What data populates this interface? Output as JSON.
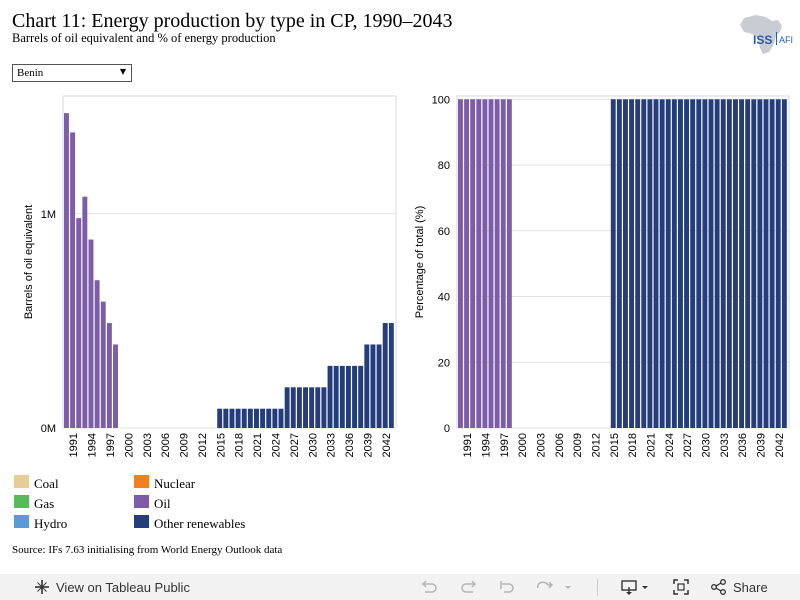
{
  "header": {
    "title": "Chart 11: Energy production by type in CP, 1990–2043",
    "subtitle": "Barrels of oil equivalent and % of energy production",
    "logo_text_left": "ISS",
    "logo_text_right": "AFI"
  },
  "filter": {
    "selected": "Benin"
  },
  "chart_data": [
    {
      "type": "bar",
      "ylabel": "Barrels of oil equivalent",
      "y_ticks": [
        "0M",
        "1M"
      ],
      "y_tick_values": [
        0,
        1000000
      ],
      "ylim": [
        0,
        1550000
      ],
      "x_tick_labels": [
        "1991",
        "1994",
        "1997",
        "2000",
        "2003",
        "2006",
        "2009",
        "2012",
        "2015",
        "2018",
        "2021",
        "2024",
        "2027",
        "2030",
        "2033",
        "2036",
        "2039",
        "2042"
      ],
      "years": [
        1990,
        1991,
        1992,
        1993,
        1994,
        1995,
        1996,
        1997,
        1998,
        1999,
        2000,
        2001,
        2002,
        2003,
        2004,
        2005,
        2006,
        2007,
        2008,
        2009,
        2010,
        2011,
        2012,
        2013,
        2014,
        2015,
        2016,
        2017,
        2018,
        2019,
        2020,
        2021,
        2022,
        2023,
        2024,
        2025,
        2026,
        2027,
        2028,
        2029,
        2030,
        2031,
        2032,
        2033,
        2034,
        2035,
        2036,
        2037,
        2038,
        2039,
        2040,
        2041,
        2042,
        2043
      ],
      "series": [
        {
          "name": "Oil",
          "color": "#7b5ea7",
          "values": [
            1470000,
            1380000,
            980000,
            1080000,
            880000,
            690000,
            590000,
            490000,
            390000,
            0,
            0,
            0,
            0,
            0,
            0,
            0,
            0,
            0,
            0,
            0,
            0,
            0,
            0,
            0,
            0,
            0,
            0,
            0,
            0,
            0,
            0,
            0,
            0,
            0,
            0,
            0,
            0,
            0,
            0,
            0,
            0,
            0,
            0,
            0,
            0,
            0,
            0,
            0,
            0,
            0,
            0,
            0,
            0,
            0
          ]
        },
        {
          "name": "Other renewables",
          "color": "#253d7a",
          "values": [
            0,
            0,
            0,
            0,
            0,
            0,
            0,
            0,
            0,
            0,
            0,
            0,
            0,
            0,
            0,
            0,
            0,
            0,
            0,
            0,
            0,
            0,
            0,
            0,
            0,
            90000,
            90000,
            90000,
            90000,
            90000,
            90000,
            90000,
            90000,
            90000,
            90000,
            90000,
            190000,
            190000,
            190000,
            190000,
            190000,
            190000,
            190000,
            290000,
            290000,
            290000,
            290000,
            290000,
            290000,
            390000,
            390000,
            390000,
            490000,
            490000
          ]
        }
      ]
    },
    {
      "type": "bar",
      "ylabel": "Percentage of total (%)",
      "y_ticks": [
        "0",
        "20",
        "40",
        "60",
        "80",
        "100"
      ],
      "y_tick_values": [
        0,
        20,
        40,
        60,
        80,
        100
      ],
      "ylim": [
        0,
        101
      ],
      "x_tick_labels": [
        "1991",
        "1994",
        "1997",
        "2000",
        "2003",
        "2006",
        "2009",
        "2012",
        "2015",
        "2018",
        "2021",
        "2024",
        "2027",
        "2030",
        "2033",
        "2036",
        "2039",
        "2042"
      ],
      "years": [
        1990,
        1991,
        1992,
        1993,
        1994,
        1995,
        1996,
        1997,
        1998,
        1999,
        2000,
        2001,
        2002,
        2003,
        2004,
        2005,
        2006,
        2007,
        2008,
        2009,
        2010,
        2011,
        2012,
        2013,
        2014,
        2015,
        2016,
        2017,
        2018,
        2019,
        2020,
        2021,
        2022,
        2023,
        2024,
        2025,
        2026,
        2027,
        2028,
        2029,
        2030,
        2031,
        2032,
        2033,
        2034,
        2035,
        2036,
        2037,
        2038,
        2039,
        2040,
        2041,
        2042,
        2043
      ],
      "series": [
        {
          "name": "Oil",
          "color": "#7b5ea7",
          "values": [
            100,
            100,
            100,
            100,
            100,
            100,
            100,
            100,
            100,
            0,
            0,
            0,
            0,
            0,
            0,
            0,
            0,
            0,
            0,
            0,
            0,
            0,
            0,
            0,
            0,
            0,
            0,
            0,
            0,
            0,
            0,
            0,
            0,
            0,
            0,
            0,
            0,
            0,
            0,
            0,
            0,
            0,
            0,
            0,
            0,
            0,
            0,
            0,
            0,
            0,
            0,
            0,
            0,
            0
          ]
        },
        {
          "name": "Other renewables",
          "color": "#253d7a",
          "values": [
            0,
            0,
            0,
            0,
            0,
            0,
            0,
            0,
            0,
            0,
            0,
            0,
            0,
            0,
            0,
            0,
            0,
            0,
            0,
            0,
            0,
            0,
            0,
            0,
            0,
            100,
            100,
            100,
            100,
            100,
            100,
            100,
            100,
            100,
            100,
            100,
            100,
            100,
            100,
            100,
            100,
            100,
            100,
            100,
            100,
            100,
            100,
            100,
            100,
            100,
            100,
            100,
            100,
            100
          ]
        }
      ]
    }
  ],
  "legend": [
    {
      "label": "Coal",
      "color": "#e6cc98"
    },
    {
      "label": "Gas",
      "color": "#5cb85c"
    },
    {
      "label": "Hydro",
      "color": "#5b9bd5"
    },
    {
      "label": "Nuclear",
      "color": "#f28022"
    },
    {
      "label": "Oil",
      "color": "#7b5ea7"
    },
    {
      "label": "Other renewables",
      "color": "#253d7a"
    }
  ],
  "source": "Source: IFs 7.63 initialising from World Energy Outlook data",
  "toolbar": {
    "view_label": "View on Tableau Public",
    "share_label": "Share",
    "icons": [
      "tableau-logo-icon",
      "undo-icon",
      "redo-icon",
      "revert-icon",
      "refresh-icon",
      "download-icon",
      "fullscreen-icon",
      "share-icon"
    ]
  }
}
